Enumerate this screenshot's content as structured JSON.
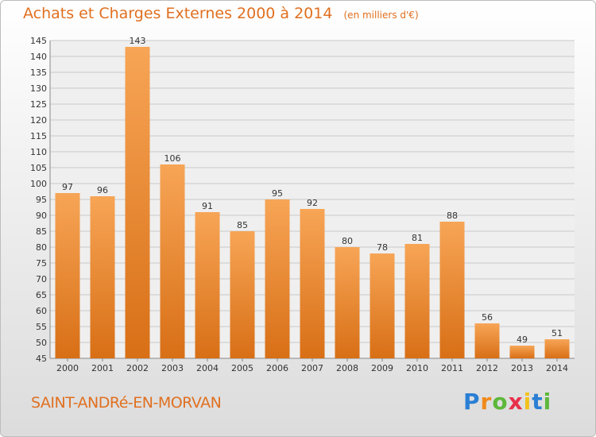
{
  "title": "Achats et Charges Externes 2000 à 2014",
  "unit_note": "(en milliers d'€)",
  "commune": "SAINT-ANDRé-EN-MORVAN",
  "brand": {
    "letters": [
      "P",
      "r",
      "o",
      "x",
      "i",
      "t",
      "i"
    ],
    "colors": [
      "#2a7fd4",
      "#f08a1c",
      "#5db83a",
      "#e8304a",
      "#f2c21b",
      "#2a7fd4",
      "#5db83a"
    ]
  },
  "colors": {
    "title": "#e07020",
    "bar_top": "#f7a556",
    "bar_bottom": "#d86f16",
    "grid": "#c8c8c8"
  },
  "chart_data": {
    "type": "bar",
    "title": "Achats et Charges Externes 2000 à 2014",
    "subtitle": "(en milliers d'€)",
    "xlabel": "",
    "ylabel": "",
    "categories": [
      "2000",
      "2001",
      "2002",
      "2003",
      "2004",
      "2005",
      "2006",
      "2007",
      "2008",
      "2009",
      "2010",
      "2011",
      "2012",
      "2013",
      "2014"
    ],
    "values": [
      97,
      96,
      143,
      106,
      91,
      85,
      95,
      92,
      80,
      78,
      81,
      88,
      56,
      49,
      51
    ],
    "ylim": [
      45,
      145
    ],
    "yticks": [
      45,
      50,
      55,
      60,
      65,
      70,
      75,
      80,
      85,
      90,
      95,
      100,
      105,
      110,
      115,
      120,
      125,
      130,
      135,
      140,
      145
    ],
    "grid": true,
    "data_labels": true
  }
}
